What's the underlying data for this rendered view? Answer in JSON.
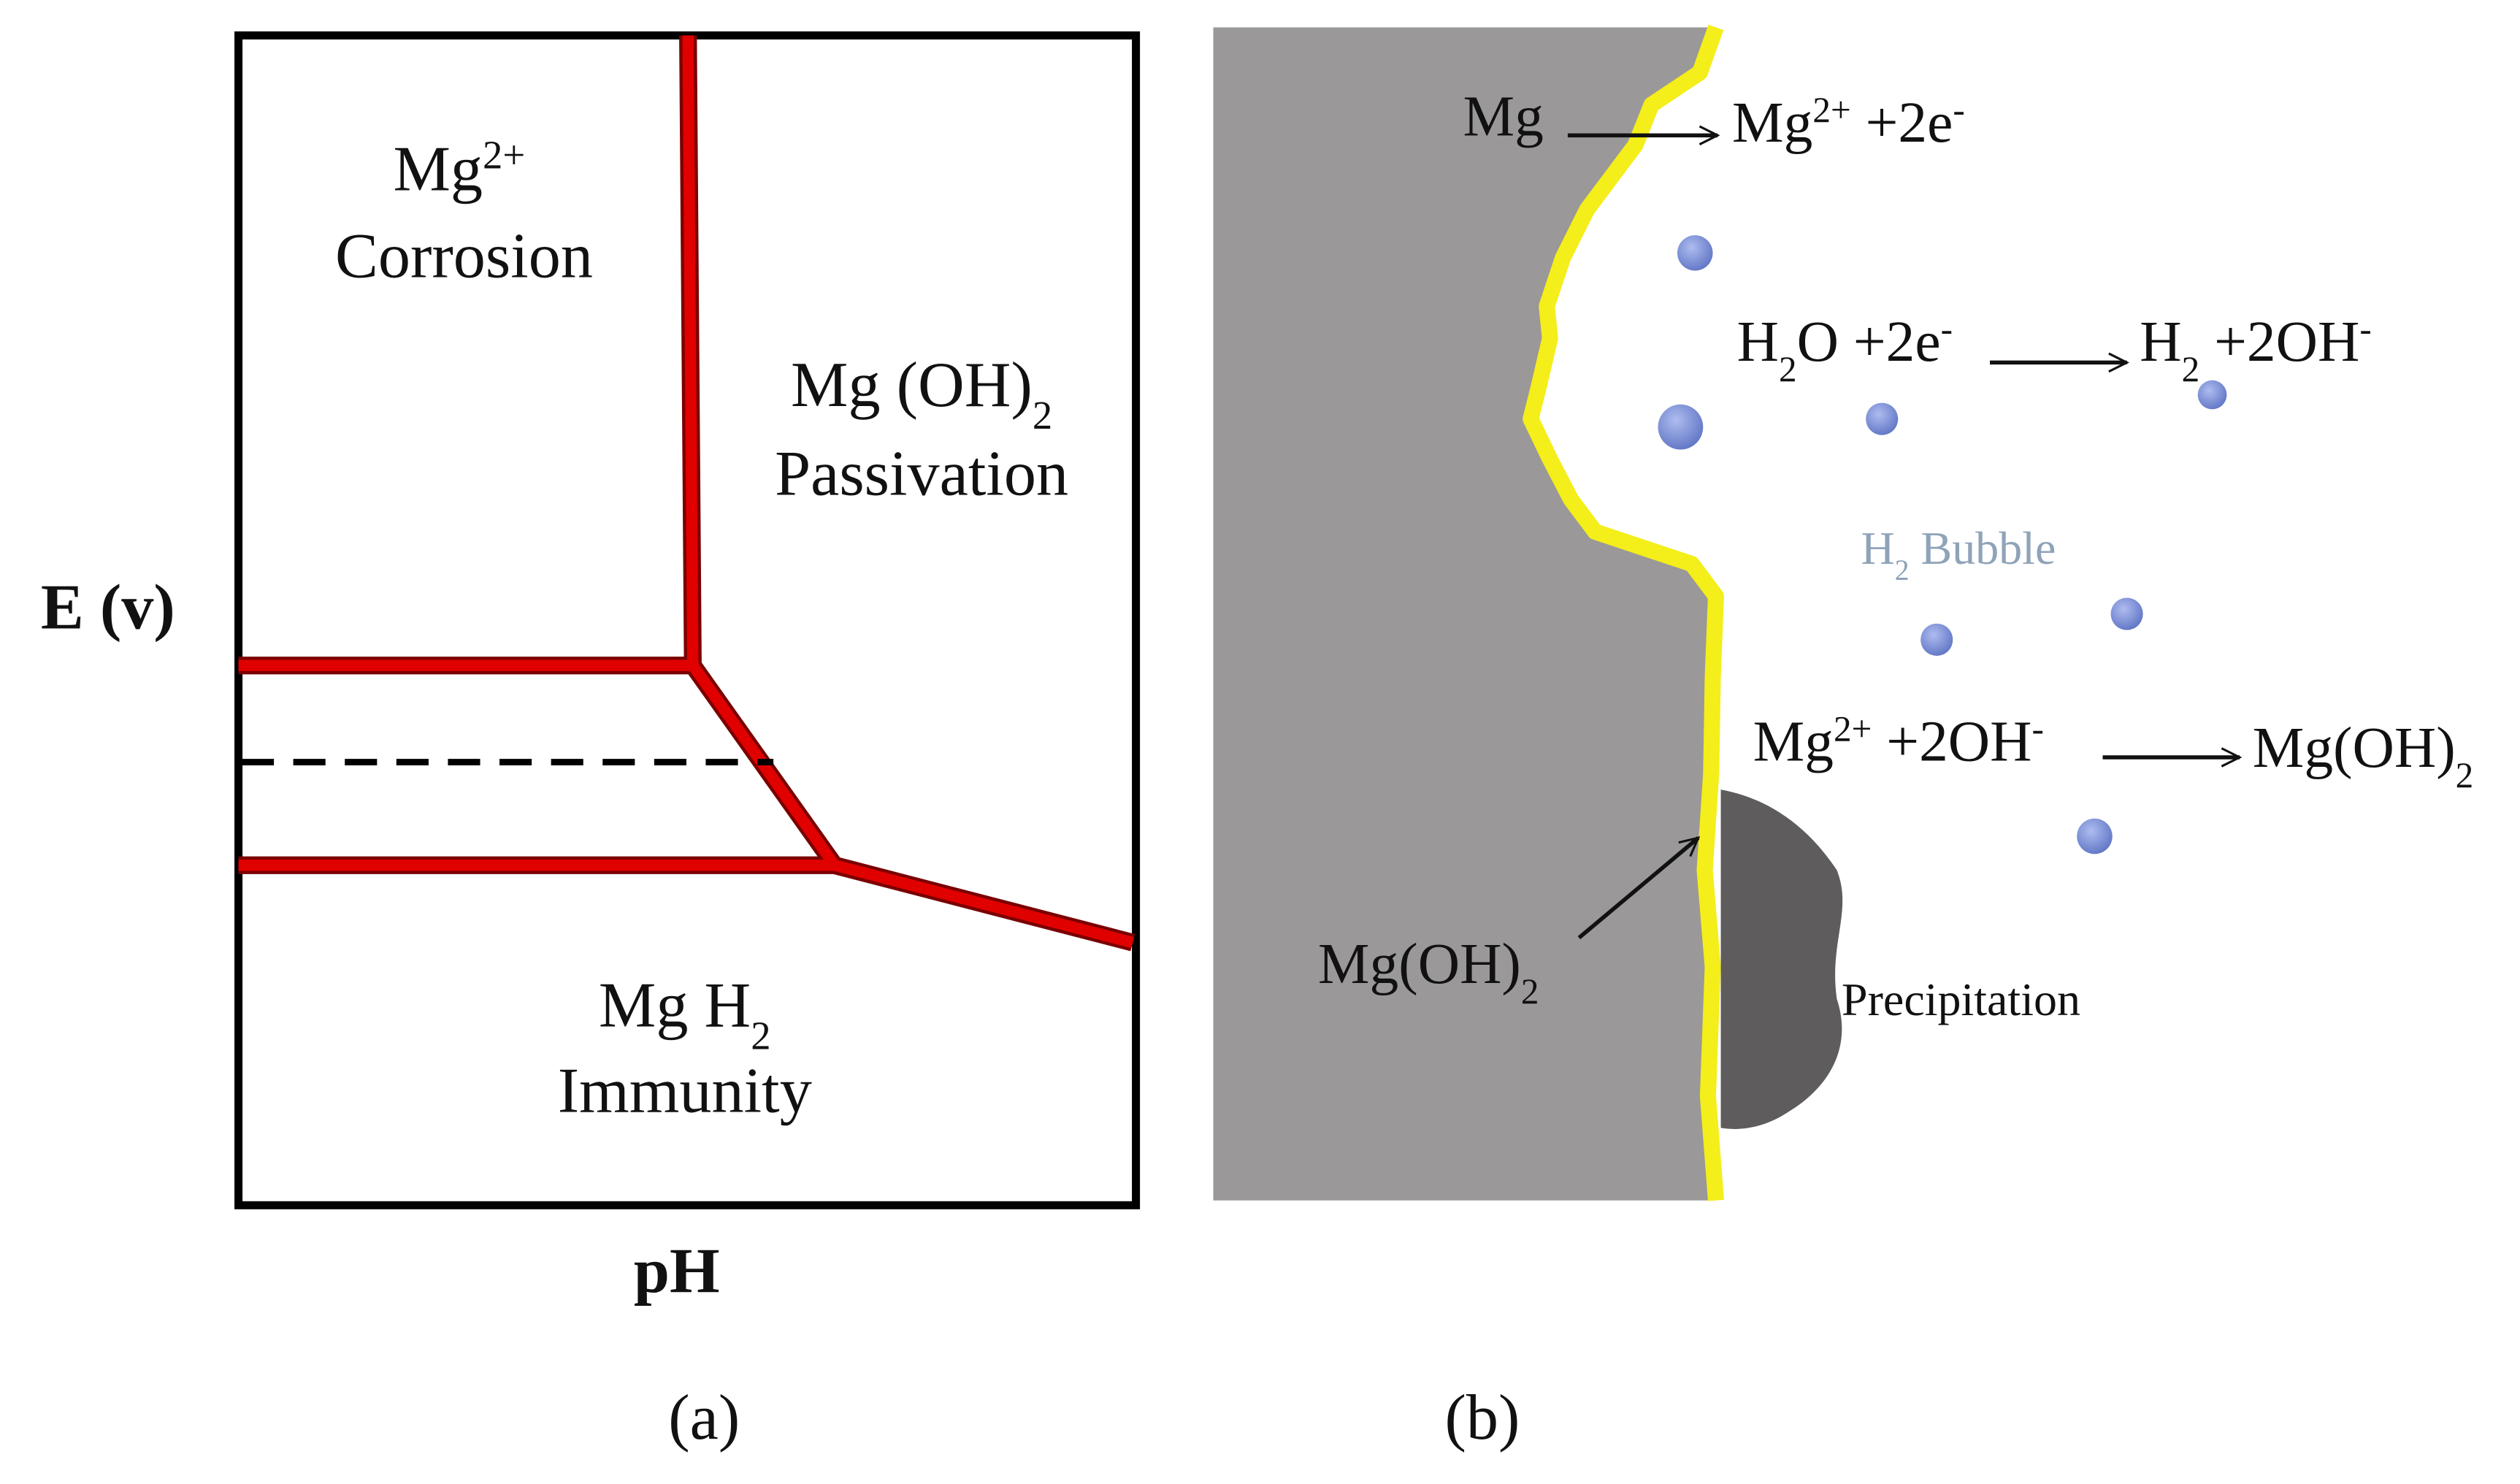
{
  "panel_a": {
    "labels": [
      {
        "parts": [
          {
            "text": "Mg"
          },
          {
            "text": "2+",
            "script": "sup"
          }
        ]
      },
      {
        "parts": [
          {
            "text": "Corrosion"
          }
        ]
      },
      {
        "parts": [
          {
            "text": "Mg (OH)"
          },
          {
            "text": "2",
            "script": "sub"
          }
        ]
      },
      {
        "parts": [
          {
            "text": "Passivation"
          }
        ]
      },
      {
        "parts": [
          {
            "text": "E (v)"
          }
        ]
      },
      {
        "parts": [
          {
            "text": "Mg H"
          },
          {
            "text": "2",
            "script": "sub"
          }
        ]
      },
      {
        "parts": [
          {
            "text": "Immunity"
          }
        ]
      },
      {
        "parts": [
          {
            "text": "pH"
          }
        ]
      }
    ],
    "caption": "(a)"
  },
  "panel_b": {
    "labels": [
      {
        "parts": [
          {
            "text": "Mg"
          }
        ]
      },
      {
        "parts": [
          {
            "text": "Mg"
          },
          {
            "text": "2+",
            "script": "sup"
          },
          {
            "text": " +2e"
          },
          {
            "text": "-",
            "script": "sup"
          }
        ]
      },
      {
        "parts": [
          {
            "text": "H"
          },
          {
            "text": "2",
            "script": "sub"
          },
          {
            "text": "O +2e"
          },
          {
            "text": "-",
            "script": "sup"
          }
        ]
      },
      {
        "parts": [
          {
            "text": "H"
          },
          {
            "text": "2",
            "script": "sub"
          },
          {
            "text": " +2OH"
          },
          {
            "text": "-",
            "script": "sup"
          }
        ]
      },
      {
        "parts": [
          {
            "text": "H"
          },
          {
            "text": "2",
            "script": "sub"
          },
          {
            "text": " Bubble"
          }
        ]
      },
      {
        "parts": [
          {
            "text": "Mg"
          },
          {
            "text": "2+",
            "script": "sup"
          },
          {
            "text": " +2OH"
          },
          {
            "text": "-",
            "script": "sup"
          }
        ]
      },
      {
        "parts": [
          {
            "text": "Mg(OH)"
          },
          {
            "text": "2",
            "script": "sub"
          }
        ]
      },
      {
        "parts": [
          {
            "text": "Mg(OH)"
          },
          {
            "text": "2",
            "script": "sub"
          }
        ]
      },
      {
        "parts": [
          {
            "text": "Precipitation"
          }
        ]
      }
    ],
    "caption": "(b)"
  }
}
